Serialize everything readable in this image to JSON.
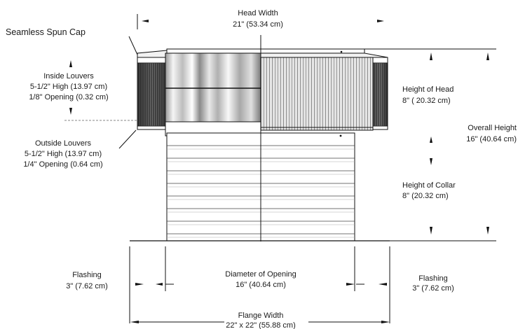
{
  "labels": {
    "head_width_title": "Head Width",
    "head_width_value": "21\"  (53.34 cm)",
    "seamless_cap": "Seamless Spun Cap",
    "inside_louvers_title": "Inside Louvers",
    "inside_louvers_high": "5-1/2\" High  (13.97 cm)",
    "inside_louvers_opening": "1/8\" Opening  (0.32 cm)",
    "outside_louvers_title": "Outside Louvers",
    "outside_louvers_high": "5-1/2\" High  (13.97 cm)",
    "outside_louvers_opening": "1/4\" Opening  (0.64 cm)",
    "height_head_title": "Height of Head",
    "height_head_value": "8\"  ( 20.32 cm)",
    "overall_height_title": "Overall Height",
    "overall_height_value": "16\"  (40.64 cm)",
    "height_collar_title": "Height of Collar",
    "height_collar_value": "8\"  (20.32 cm)",
    "flashing_left_title": "Flashing",
    "flashing_left_value": "3\"  (7.62 cm)",
    "diameter_title": "Diameter of Opening",
    "diameter_value": "16\"  (40.64 cm)",
    "flashing_right_title": "Flashing",
    "flashing_right_value": "3\"  (7.62 cm)",
    "flange_title": "Flange Width",
    "flange_value": "22\" x 22\"  (55.88 cm)"
  },
  "colors": {
    "ink": "#111111",
    "light_metal": "#eeeeee",
    "dark_louver": "#3a3a3a"
  }
}
